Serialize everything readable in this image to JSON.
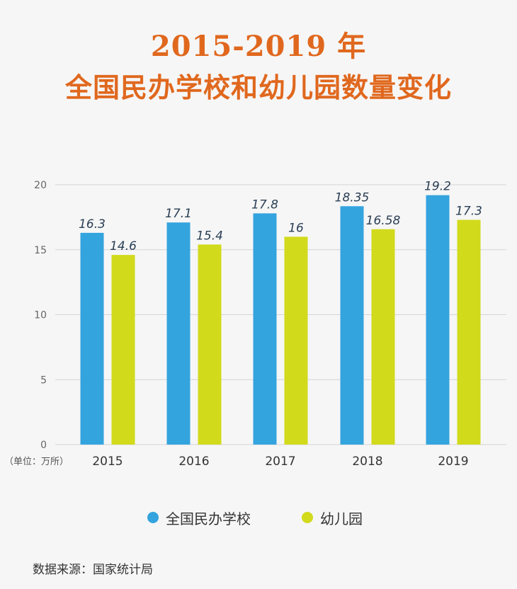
{
  "title": {
    "line1": "2015-2019 年",
    "line2": "全国民办学校和幼儿园数量变化"
  },
  "unit_label": "（单位：万所）",
  "source": "数据来源：国家统计局",
  "colors": {
    "series1": "#34a4df",
    "series2": "#d2da1c",
    "title": "#e0681e"
  },
  "chart_data": {
    "type": "bar",
    "categories": [
      "2015",
      "2016",
      "2017",
      "2018",
      "2019"
    ],
    "series": [
      {
        "name": "全国民办学校",
        "values": [
          16.3,
          17.1,
          17.8,
          18.35,
          19.2
        ],
        "labels": [
          "16.3",
          "17.1",
          "17.8",
          "18.35",
          "19.2"
        ]
      },
      {
        "name": "幼儿园",
        "values": [
          14.6,
          15.4,
          16,
          16.58,
          17.3
        ],
        "labels": [
          "14.6",
          "15.4",
          "16",
          "16.58",
          "17.3"
        ]
      }
    ],
    "ylim": [
      0,
      20
    ],
    "yticks": [
      0,
      5,
      10,
      15,
      20
    ],
    "grid": true,
    "legend": "bottom"
  }
}
